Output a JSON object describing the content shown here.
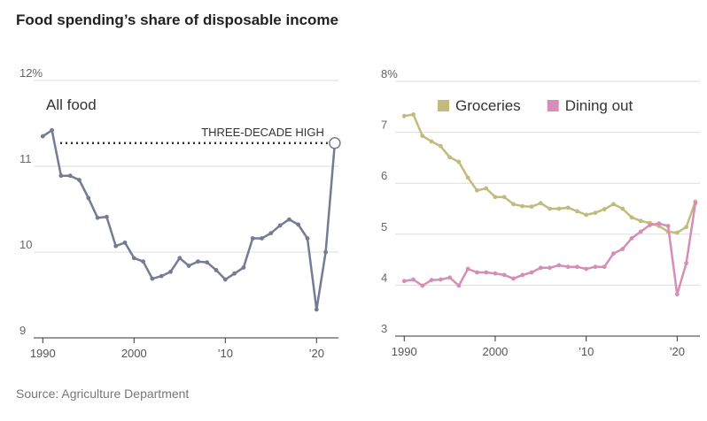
{
  "title": "Food spending’s share of disposable income",
  "source": "Source: Agriculture Department",
  "chart_data": [
    {
      "type": "line",
      "x": [
        1990,
        1991,
        1992,
        1993,
        1994,
        1995,
        1996,
        1997,
        1998,
        1999,
        2000,
        2001,
        2002,
        2003,
        2004,
        2005,
        2006,
        2007,
        2008,
        2009,
        2010,
        2011,
        2012,
        2013,
        2014,
        2015,
        2016,
        2017,
        2018,
        2019,
        2020,
        2021,
        2022
      ],
      "series": [
        {
          "name": "All food",
          "color": "#767b94",
          "values": [
            11.35,
            11.42,
            10.89,
            10.89,
            10.84,
            10.63,
            10.4,
            10.41,
            10.07,
            10.11,
            9.93,
            9.89,
            9.69,
            9.72,
            9.77,
            9.93,
            9.84,
            9.89,
            9.88,
            9.79,
            9.68,
            9.75,
            9.82,
            10.16,
            10.16,
            10.22,
            10.31,
            10.38,
            10.32,
            10.16,
            9.33,
            10.0,
            11.27
          ]
        }
      ],
      "annotation": "THREE-DECADE HIGH",
      "highlight_last": true,
      "xlim": [
        1989,
        2022.4
      ],
      "xticks": [
        1990,
        2000,
        {
          "value": 2010,
          "label": "’10"
        },
        {
          "value": 2020,
          "label": "’20"
        }
      ],
      "ylim": [
        9,
        12
      ],
      "yticks": [
        9,
        10,
        11,
        {
          "value": 12,
          "label": "12%"
        }
      ],
      "grid": true,
      "legend": "top-left"
    },
    {
      "type": "line",
      "x": [
        1990,
        1991,
        1992,
        1993,
        1994,
        1995,
        1996,
        1997,
        1998,
        1999,
        2000,
        2001,
        2002,
        2003,
        2004,
        2005,
        2006,
        2007,
        2008,
        2009,
        2010,
        2011,
        2012,
        2013,
        2014,
        2015,
        2016,
        2017,
        2018,
        2019,
        2020,
        2021,
        2022
      ],
      "series": [
        {
          "name": "Groceries",
          "color": "#c3bb7d",
          "values": [
            7.32,
            7.35,
            6.93,
            6.82,
            6.73,
            6.51,
            6.42,
            6.11,
            5.86,
            5.9,
            5.73,
            5.73,
            5.59,
            5.55,
            5.54,
            5.61,
            5.5,
            5.5,
            5.52,
            5.45,
            5.38,
            5.42,
            5.49,
            5.59,
            5.5,
            5.33,
            5.26,
            5.22,
            5.16,
            5.05,
            5.03,
            5.14,
            5.64
          ]
        },
        {
          "name": "Dining out",
          "color": "#d68db6",
          "values": [
            4.08,
            4.11,
            3.99,
            4.1,
            4.11,
            4.15,
            3.99,
            4.32,
            4.25,
            4.25,
            4.23,
            4.2,
            4.13,
            4.2,
            4.25,
            4.34,
            4.34,
            4.39,
            4.36,
            4.36,
            4.32,
            4.36,
            4.36,
            4.62,
            4.71,
            4.92,
            5.05,
            5.18,
            5.21,
            5.16,
            3.82,
            4.43,
            5.61
          ]
        }
      ],
      "xlim": [
        1989,
        2022.5
      ],
      "xticks": [
        1990,
        2000,
        {
          "value": 2010,
          "label": "’10"
        },
        {
          "value": 2020,
          "label": "’20"
        }
      ],
      "ylim": [
        3,
        8
      ],
      "yticks": [
        3,
        4,
        5,
        6,
        7,
        {
          "value": 8,
          "label": "8%"
        }
      ],
      "grid": true,
      "legend": "top"
    }
  ]
}
